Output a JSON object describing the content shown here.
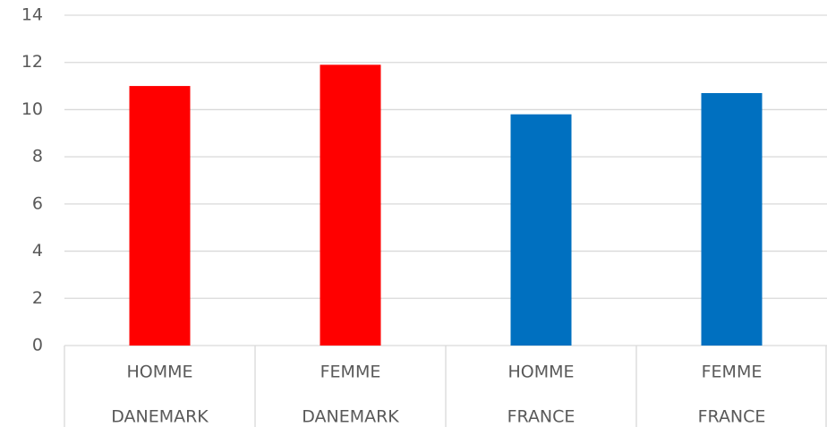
{
  "chart_data": {
    "type": "bar",
    "categories": [
      [
        "HOMME",
        "DANEMARK"
      ],
      [
        "FEMME",
        "DANEMARK"
      ],
      [
        "HOMME",
        "FRANCE"
      ],
      [
        "FEMME",
        "FRANCE"
      ]
    ],
    "values": [
      11.0,
      11.9,
      9.8,
      10.7
    ],
    "colors": [
      "#ff0000",
      "#ff0000",
      "#0070c0",
      "#0070c0"
    ],
    "ylim": [
      0,
      14
    ],
    "yticks": [
      0,
      2,
      4,
      6,
      8,
      10,
      12,
      14
    ],
    "grid": true
  }
}
